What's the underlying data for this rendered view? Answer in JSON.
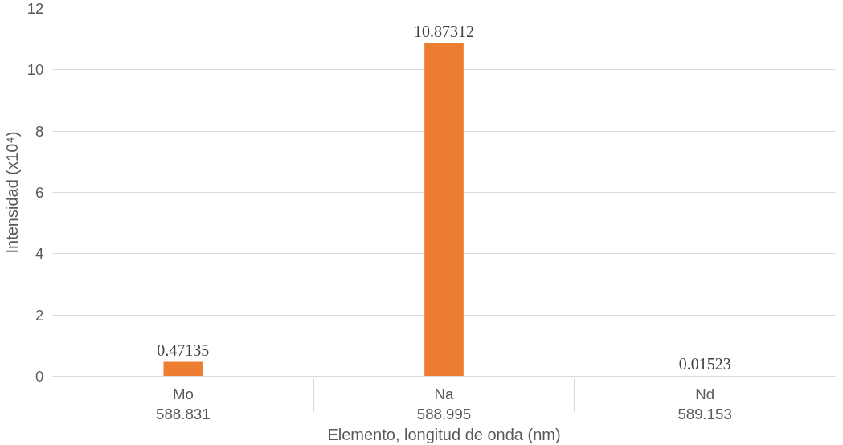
{
  "chart_data": {
    "type": "bar",
    "categories": [
      "Mo\n588.831",
      "Na\n588.995",
      "Nd\n589.153"
    ],
    "values": [
      0.47135,
      10.87312,
      0.01523
    ],
    "color": "#ed7d31",
    "xlabel": "Elemento, longitud de onda (nm)",
    "ylabel": "Intensidad (x10⁴)",
    "ylim": [
      0,
      12
    ],
    "yticks": [
      0,
      2,
      4,
      6,
      8,
      10,
      12
    ],
    "grid": "y",
    "data_labels": true
  }
}
